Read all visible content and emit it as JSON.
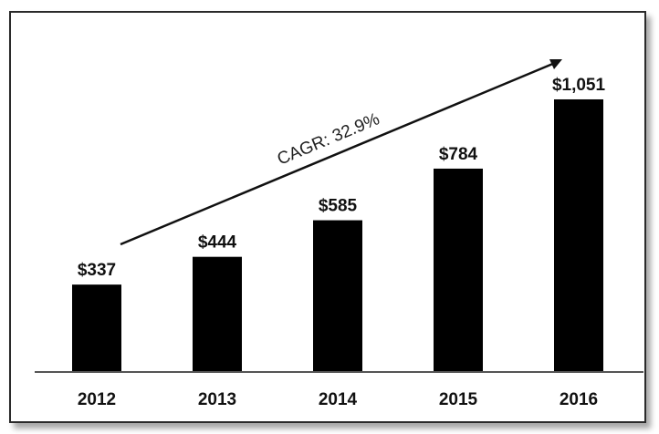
{
  "chart_data": {
    "type": "bar",
    "categories": [
      "2012",
      "2013",
      "2014",
      "2015",
      "2016"
    ],
    "values": [
      337,
      444,
      585,
      784,
      1051
    ],
    "data_labels": [
      "$337",
      "$444",
      "$585",
      "$784",
      "$1,051"
    ],
    "ylim": [
      0,
      1150
    ],
    "grid": false,
    "legend": "none",
    "bar_color": "#000000",
    "annotation": "CAGR: 32.9%"
  }
}
